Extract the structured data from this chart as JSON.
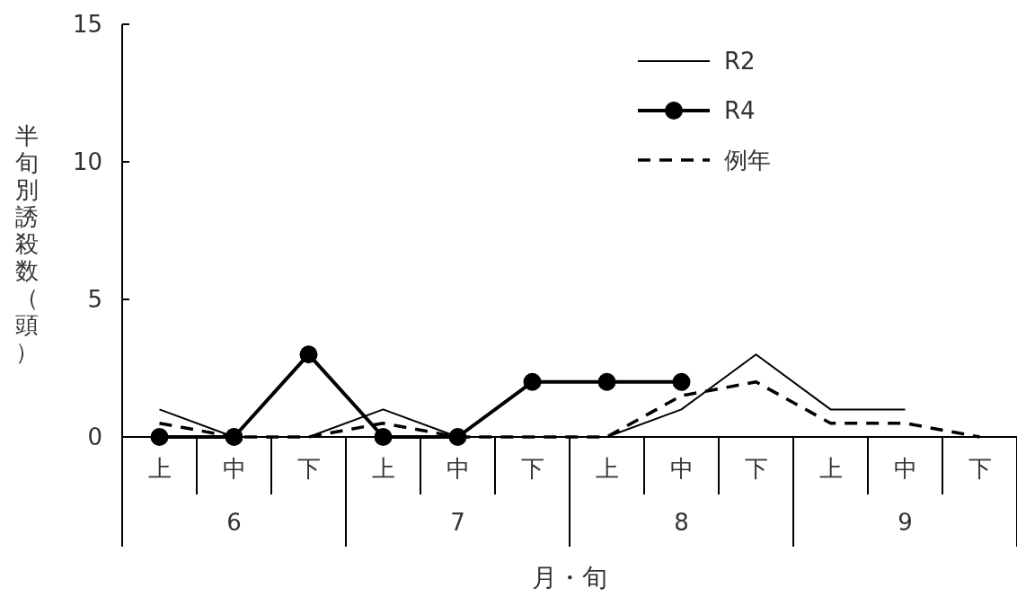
{
  "chart_data": {
    "type": "line",
    "xlabel": "月・旬",
    "ylabel": "半旬別誘殺数（頭）",
    "categories": [
      "上",
      "中",
      "下",
      "上",
      "中",
      "下",
      "上",
      "中",
      "下",
      "上",
      "中",
      "下"
    ],
    "annotations": [
      "6",
      "7",
      "8",
      "9"
    ],
    "ylim": [
      0,
      15
    ],
    "yticks": [
      0,
      5,
      10,
      15
    ],
    "grid": false,
    "legend": "top right",
    "series": [
      {
        "name": "R2",
        "color": "#000000",
        "line_style": "solid",
        "marker": "none",
        "values": [
          1,
          0,
          0,
          1,
          0,
          0,
          0,
          1,
          3,
          1,
          1,
          null
        ]
      },
      {
        "name": "R4",
        "color": "#000000",
        "line_style": "solid",
        "marker": "circle",
        "values": [
          0,
          0,
          3,
          0,
          0,
          2,
          2,
          2,
          null,
          null,
          null,
          null
        ]
      },
      {
        "name": "例年",
        "color": "#000000",
        "line_style": "dashed",
        "marker": "none",
        "values": [
          0.5,
          0,
          0,
          0.5,
          0,
          0,
          0,
          1.5,
          2,
          0.5,
          0.5,
          0
        ]
      }
    ]
  }
}
